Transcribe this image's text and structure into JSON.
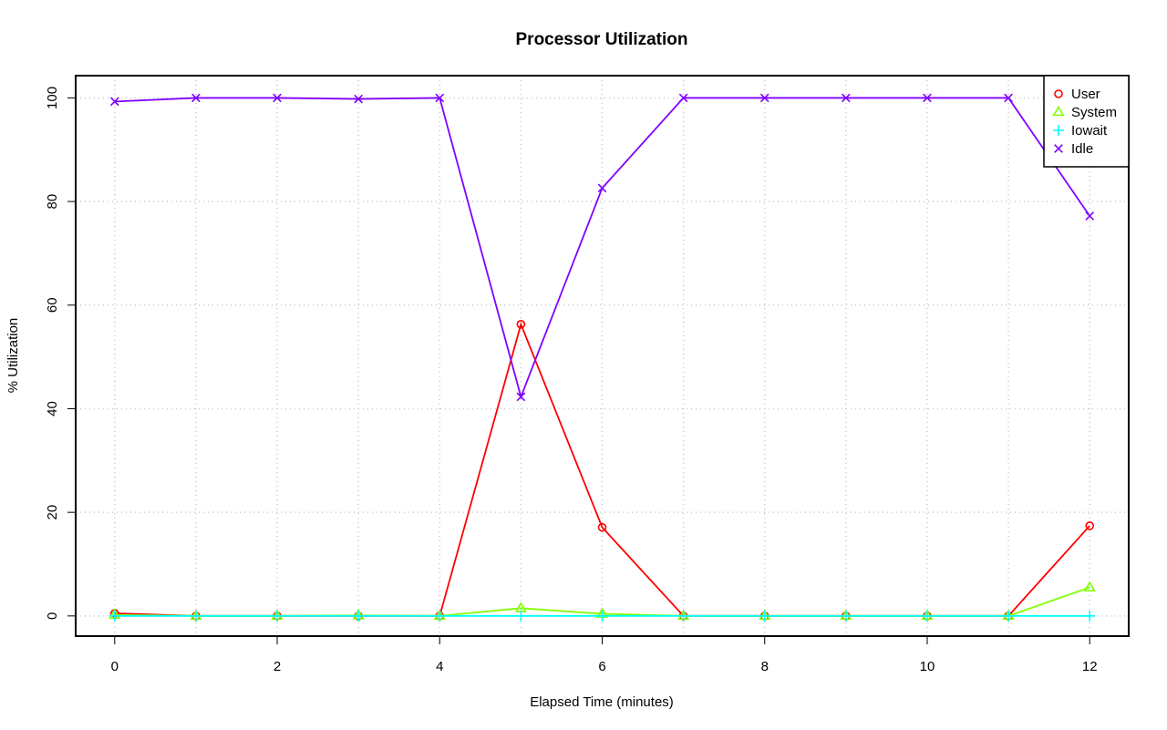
{
  "chart_data": {
    "type": "line",
    "title": "Processor Utilization",
    "xlabel": "Elapsed Time (minutes)",
    "ylabel": "% Utilization",
    "x": [
      0,
      1,
      2,
      3,
      4,
      5,
      6,
      7,
      8,
      9,
      10,
      11,
      12
    ],
    "xlim": [
      -0.48,
      12.48
    ],
    "ylim": [
      -3.9,
      104.3
    ],
    "x_ticks": [
      0,
      2,
      4,
      6,
      8,
      10,
      12
    ],
    "y_ticks": [
      0,
      20,
      40,
      60,
      80,
      100
    ],
    "grid": true,
    "legend_position": "top-right",
    "series": [
      {
        "name": "User",
        "color": "#ff0000",
        "marker": "circle",
        "values": [
          0.5,
          0.0,
          0.0,
          0.0,
          0.0,
          56.3,
          17.1,
          0.0,
          0.0,
          0.0,
          0.0,
          0.0,
          17.4
        ]
      },
      {
        "name": "System",
        "color": "#80ff00",
        "marker": "triangle",
        "values": [
          0.2,
          0.0,
          0.0,
          0.1,
          0.0,
          1.5,
          0.4,
          0.0,
          0.0,
          0.0,
          0.0,
          0.0,
          5.5
        ]
      },
      {
        "name": "Iowait",
        "color": "#00ffff",
        "marker": "plus",
        "values": [
          0.0,
          0.0,
          0.0,
          0.0,
          0.0,
          0.0,
          0.0,
          0.0,
          0.0,
          0.0,
          0.0,
          0.0,
          0.0
        ]
      },
      {
        "name": "Idle",
        "color": "#8000ff",
        "marker": "cross",
        "values": [
          99.3,
          100.0,
          100.0,
          99.8,
          100.0,
          42.3,
          82.6,
          100.0,
          100.0,
          100.0,
          100.0,
          100.0,
          77.2
        ]
      }
    ]
  }
}
